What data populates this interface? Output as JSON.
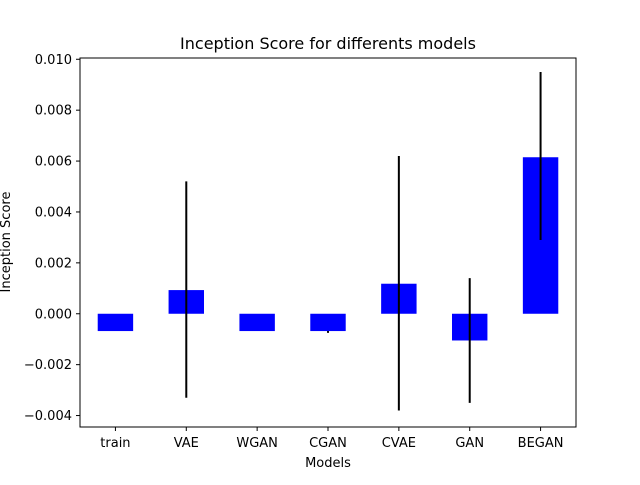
{
  "chart_data": {
    "type": "bar",
    "title": "Inception Score for differents models",
    "xlabel": "Models",
    "ylabel": "Inception Score",
    "categories": [
      "train",
      "VAE",
      "WGAN",
      "CGAN",
      "CVAE",
      "GAN",
      "BEGAN"
    ],
    "values": [
      -0.00068,
      0.00093,
      -0.00068,
      -0.00068,
      0.00118,
      -0.00105,
      0.00615
    ],
    "error_low": [
      -0.00068,
      -0.0033,
      -0.00068,
      -0.00075,
      -0.0038,
      -0.0035,
      0.0029
    ],
    "error_high": [
      -0.00068,
      0.0052,
      -0.00068,
      -0.00068,
      0.0062,
      0.0014,
      0.0095
    ],
    "ylim": [
      -0.00445,
      0.01005
    ],
    "yticks": [
      -0.004,
      -0.002,
      0.0,
      0.002,
      0.004,
      0.006,
      0.008,
      0.01
    ],
    "ytick_labels": [
      "−0.004",
      "−0.002",
      "0.000",
      "0.002",
      "0.004",
      "0.006",
      "0.008",
      "0.010"
    ],
    "bar_color": "#0000ff",
    "error_color": "#000000",
    "grid": false,
    "legend": "none"
  }
}
